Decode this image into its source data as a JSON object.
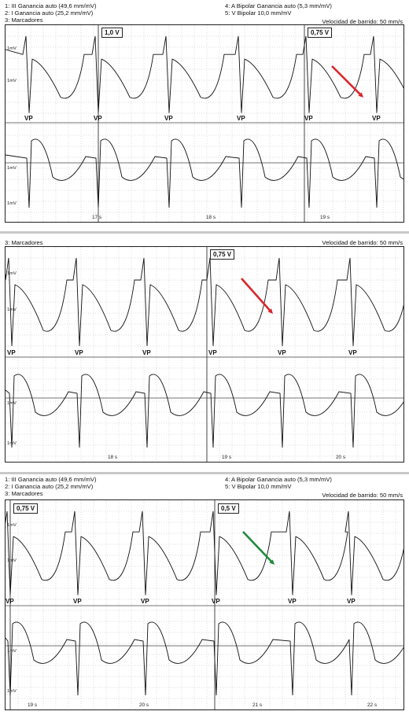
{
  "panels": [
    {
      "header_left": [
        "1: III Ganancia auto (49,6 mm/mV)",
        "2: I Ganancia auto (25,2 mm/mV)",
        "3: Marcadores"
      ],
      "header_right": [
        "4: A Bipolar Ganancia auto (5,3 mm/mV)",
        "5: V Bipolar 10,0 mm/mV"
      ],
      "sweep": "Velocidad de barrido: 50 mm/s",
      "voltages": [
        "1,0 V",
        "0,75 V"
      ],
      "vp_label": "VP",
      "mv_label": "1mV",
      "time_labels": [
        "17 s",
        "18 s",
        "19 s"
      ],
      "arrow_color": "#d9262b"
    },
    {
      "header_left": [
        "3: Marcadores"
      ],
      "header_right": [],
      "sweep": "Velocidad de barrido: 50 mm/s",
      "voltages": [
        "0,75 V"
      ],
      "vp_label": "VP",
      "mv_label": "1mV",
      "time_labels": [
        "18 s",
        "19 s",
        "20 s"
      ],
      "arrow_color": "#d9262b"
    },
    {
      "header_left": [
        "1: III Ganancia auto (49,6 mm/mV)",
        "2: I Ganancia auto (25,2 mm/mV)",
        "3: Marcadores"
      ],
      "header_right": [
        "4: A Bipolar Ganancia auto (5,3 mm/mV)",
        "5: V Bipolar 10,0 mm/mV"
      ],
      "sweep": "Velocidad de barrido: 50 mm/s",
      "voltages": [
        "0,75 V",
        "0,5 V"
      ],
      "vp_label": "VP",
      "mv_label": "1mV",
      "time_labels": [
        "19 s",
        "20 s",
        "21 s",
        "22 s"
      ],
      "arrow_color": "#1f8a3c"
    }
  ]
}
